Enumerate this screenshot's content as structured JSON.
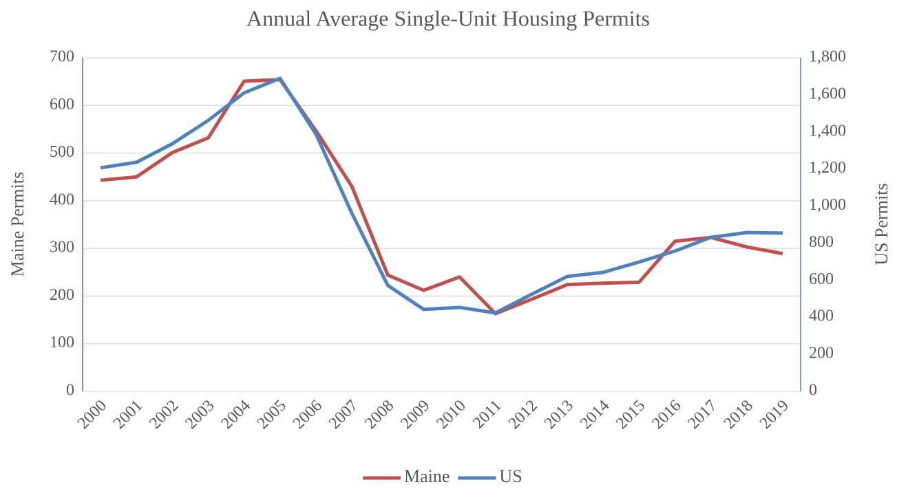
{
  "chart_data": {
    "type": "line",
    "title": "Annual Average Single-Unit Housing Permits",
    "y_label": "Maine Permits",
    "y2_label": "US Permits",
    "categories": [
      "2000",
      "2001",
      "2002",
      "2003",
      "2004",
      "2005",
      "2006",
      "2007",
      "2008",
      "2009",
      "2010",
      "2011",
      "2012",
      "2013",
      "2014",
      "2015",
      "2016",
      "2017",
      "2018",
      "2019"
    ],
    "series": [
      {
        "name": "Maine",
        "color": "#c0504d",
        "values": [
          443,
          450,
          501,
          532,
          651,
          654,
          547,
          430,
          244,
          212,
          240,
          163,
          193,
          224,
          227,
          229,
          315,
          323,
          303,
          289
        ]
      },
      {
        "name": "US",
        "color": "#4f81bd",
        "axis": "y2",
        "values": [
          1206,
          1236,
          1336,
          1462,
          1611,
          1689,
          1388,
          961,
          572,
          442,
          453,
          423,
          523,
          620,
          642,
          698,
          757,
          831,
          857,
          854
        ]
      }
    ],
    "ylim": [
      0,
      700
    ],
    "yticks": [
      0,
      100,
      200,
      300,
      400,
      500,
      600,
      700
    ],
    "y2lim": [
      0,
      1800
    ],
    "y2ticks": [
      0,
      200,
      400,
      600,
      800,
      {
        "value": 1000,
        "label": "1,000"
      },
      {
        "value": 1200,
        "label": "1,200"
      },
      {
        "value": 1400,
        "label": "1,400"
      },
      {
        "value": 1600,
        "label": "1,600"
      },
      {
        "value": 1800,
        "label": "1,800"
      }
    ],
    "grid": true,
    "legend": "bottom"
  }
}
